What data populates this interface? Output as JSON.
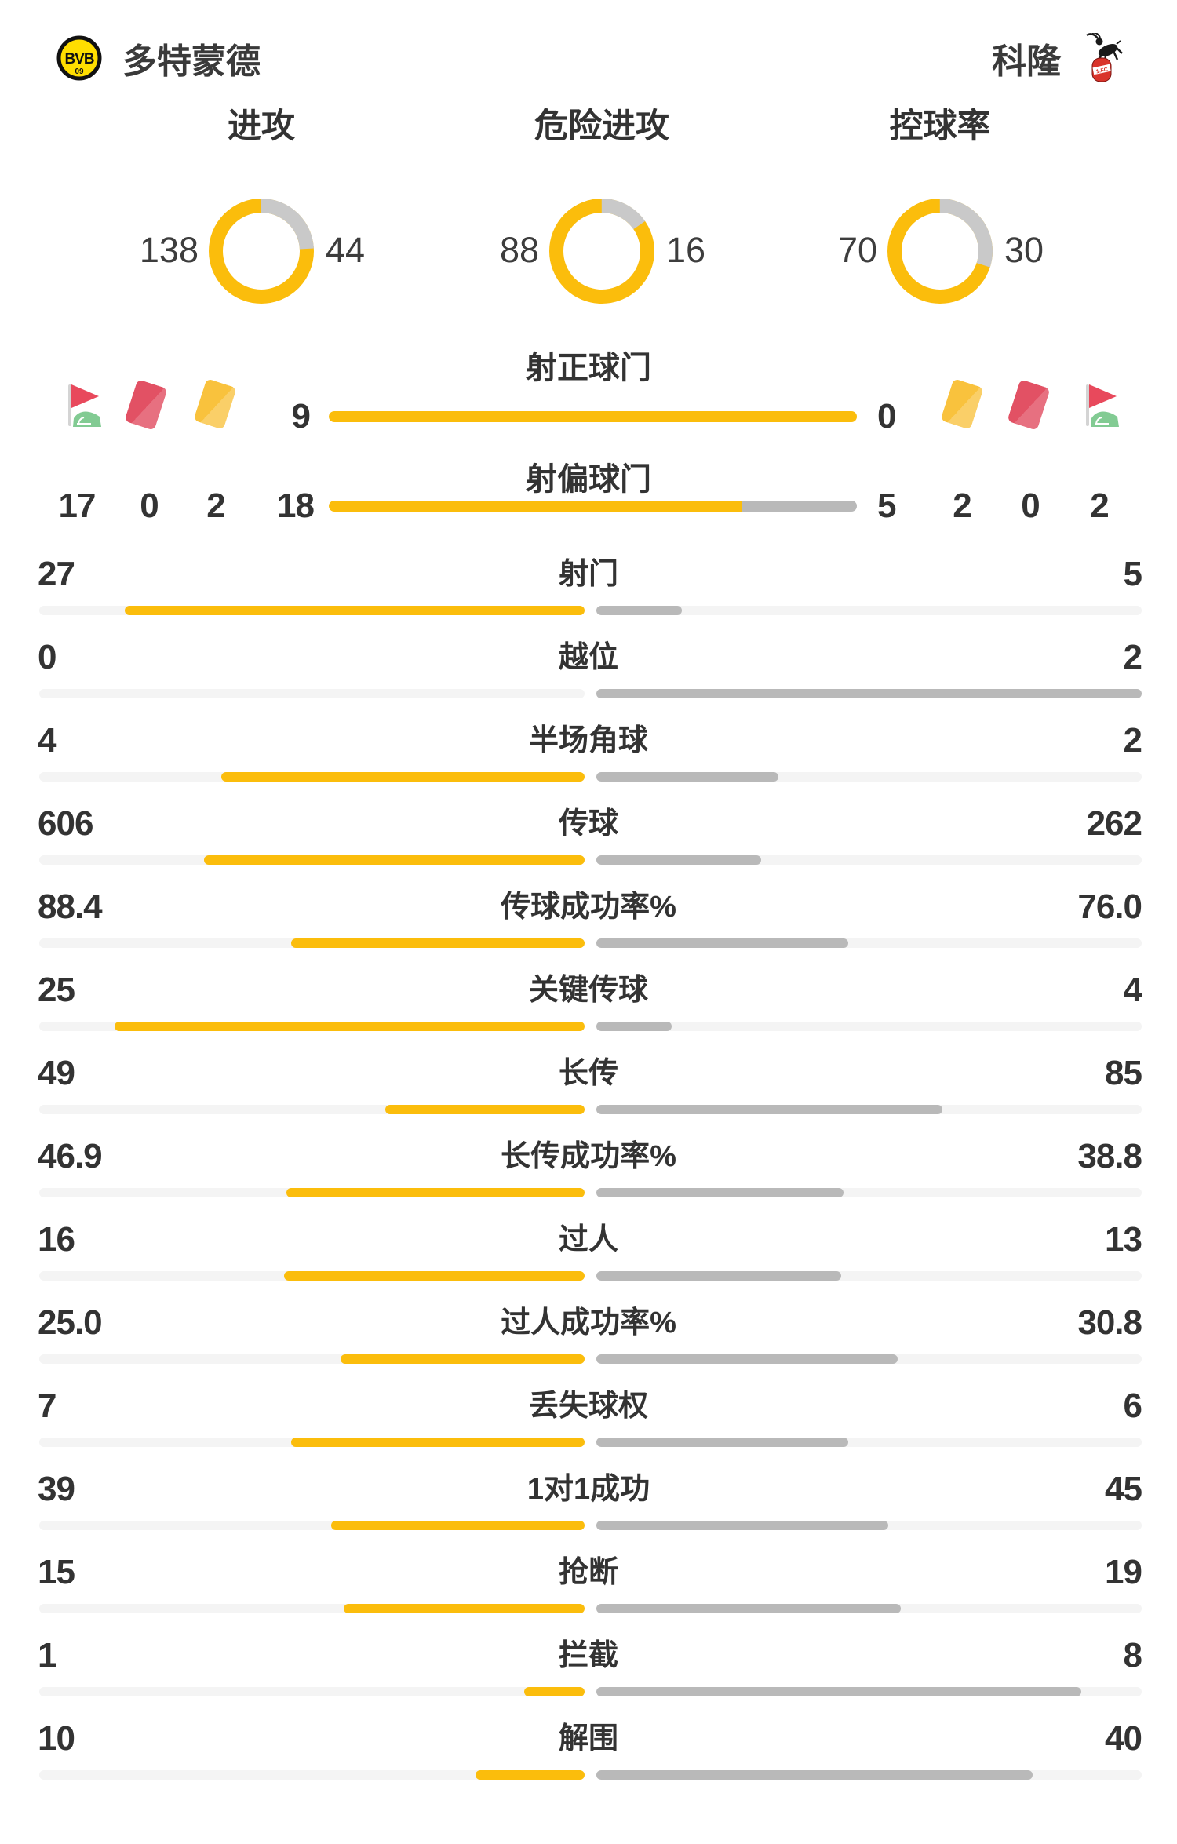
{
  "header": {
    "home": {
      "name": "多特蒙德",
      "logo": "bvb-crest"
    },
    "away": {
      "name": "科隆",
      "logo": "koln-crest"
    }
  },
  "donuts": [
    {
      "label": "进攻",
      "home": "138",
      "away": "44"
    },
    {
      "label": "危险进攻",
      "home": "88",
      "away": "16"
    },
    {
      "label": "控球率",
      "home": "70",
      "away": "30"
    }
  ],
  "shots": [
    {
      "label": "射正球门",
      "home": "9",
      "away": "0"
    },
    {
      "label": "射偏球门",
      "home": "18",
      "away": "5"
    }
  ],
  "cards": {
    "home": {
      "corner": "17",
      "red": "0",
      "yellow": "2"
    },
    "away": {
      "yellow": "2",
      "red": "0",
      "corner": "2"
    }
  },
  "stats": [
    {
      "label": "射门",
      "home": "27",
      "away": "5"
    },
    {
      "label": "越位",
      "home": "0",
      "away": "2"
    },
    {
      "label": "半场角球",
      "home": "4",
      "away": "2"
    },
    {
      "label": "传球",
      "home": "606",
      "away": "262"
    },
    {
      "label": "传球成功率%",
      "home": "88.4",
      "away": "76.0"
    },
    {
      "label": "关键传球",
      "home": "25",
      "away": "4"
    },
    {
      "label": "长传",
      "home": "49",
      "away": "85"
    },
    {
      "label": "长传成功率%",
      "home": "46.9",
      "away": "38.8"
    },
    {
      "label": "过人",
      "home": "16",
      "away": "13"
    },
    {
      "label": "过人成功率%",
      "home": "25.0",
      "away": "30.8"
    },
    {
      "label": "丢失球权",
      "home": "7",
      "away": "6"
    },
    {
      "label": "1对1成功",
      "home": "39",
      "away": "45"
    },
    {
      "label": "抢断",
      "home": "15",
      "away": "19"
    },
    {
      "label": "拦截",
      "home": "1",
      "away": "8"
    },
    {
      "label": "解围",
      "home": "10",
      "away": "40"
    }
  ],
  "colors": {
    "accent_yellow": "#FBBD0C",
    "bar_gray": "#B9B9B9",
    "track_gray": "#F4F4F4",
    "donut_gray": "#C9C9C9",
    "text_dark": "#383838",
    "card_red": "#E25164",
    "card_yellow": "#F9C23D",
    "flag_green": "#82CB93",
    "bvb_yellow": "#FFDE00",
    "koln_red": "#D9342B"
  }
}
